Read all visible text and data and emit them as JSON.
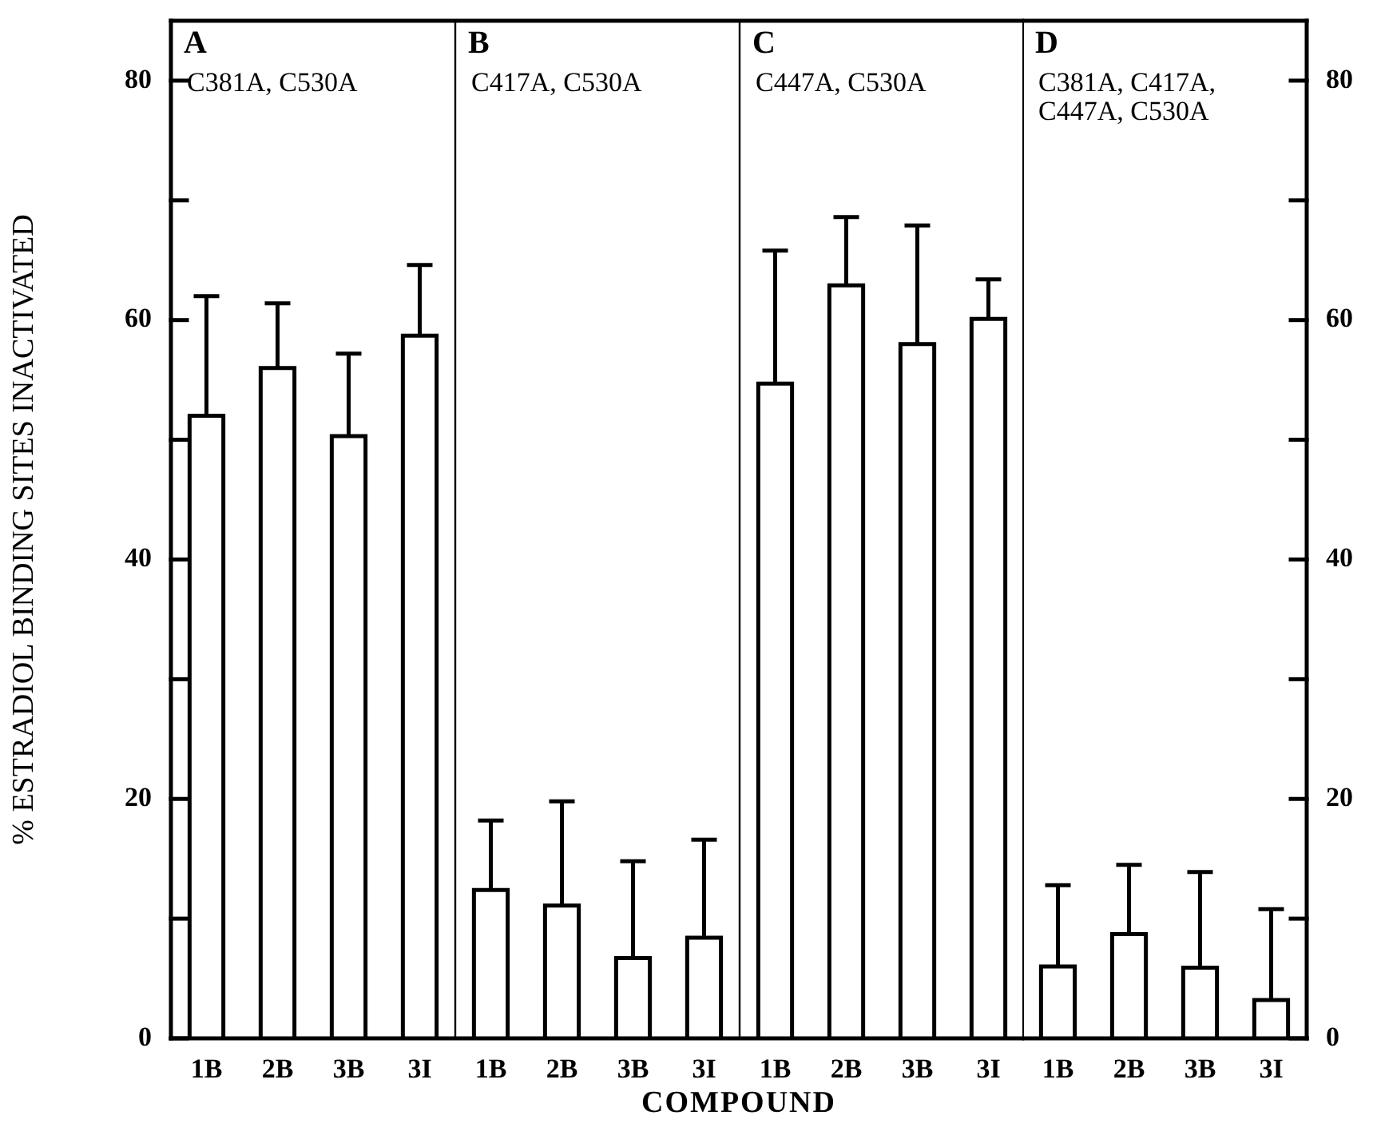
{
  "chart_data": [
    {
      "type": "bar",
      "title": "A",
      "subtitle": "C381A, C530A",
      "ylabel": "% ESTRADIOL BINDING SITES INACTIVATED",
      "categories": [
        "1B",
        "2B",
        "3B",
        "3I"
      ],
      "values": [
        52,
        56,
        50.3,
        58.7
      ],
      "errors": [
        [
          52,
          62
        ],
        [
          56,
          61.4
        ],
        [
          50.3,
          57.2
        ],
        [
          58.7,
          64.6
        ]
      ],
      "color": "#ffffff",
      "ylim": [
        0,
        85
      ],
      "yticks": [
        0,
        {
          "value": 10,
          "label": null
        },
        20,
        {
          "value": 30,
          "label": null
        },
        40,
        {
          "value": 50,
          "label": null
        },
        60,
        {
          "value": 70,
          "label": null
        },
        80
      ],
      "grid": false,
      "legend": false
    },
    {
      "type": "bar",
      "title": "B",
      "subtitle": "C417A, C530A",
      "categories": [
        "1B",
        "2B",
        "3B",
        "3I"
      ],
      "values": [
        12.4,
        11.1,
        6.7,
        8.4
      ],
      "errors": [
        [
          12.4,
          18.2
        ],
        [
          11.1,
          19.8
        ],
        [
          6.7,
          14.8
        ],
        [
          8.4,
          16.6
        ]
      ],
      "color": "#ffffff",
      "ylim": [
        0,
        85
      ],
      "tick_labels": "x",
      "grid": false,
      "legend": false
    },
    {
      "type": "bar",
      "title": "C",
      "subtitle": "C447A, C530A",
      "xlabel": "COMPOUND",
      "categories": [
        "1B",
        "2B",
        "3B",
        "3I"
      ],
      "values": [
        54.7,
        62.9,
        58,
        60.1
      ],
      "errors": [
        [
          54.7,
          65.8
        ],
        [
          62.9,
          68.6
        ],
        [
          58,
          67.9
        ],
        [
          60.1,
          63.4
        ]
      ],
      "color": "#ffffff",
      "ylim": [
        0,
        85
      ],
      "tick_labels": "x",
      "grid": false,
      "legend": false
    },
    {
      "type": "bar",
      "title": "D",
      "subtitle": "C381A, C417A, C447A, C530A",
      "categories": [
        "1B",
        "2B",
        "3B",
        "3I"
      ],
      "values": [
        6,
        8.7,
        5.9,
        3.2
      ],
      "errors": [
        [
          6,
          12.8
        ],
        [
          8.7,
          14.5
        ],
        [
          5.9,
          13.9
        ],
        [
          3.2,
          10.8
        ]
      ],
      "color": "#ffffff",
      "ylim": [
        0,
        85
      ],
      "yticks": [
        0,
        {
          "value": 10,
          "label": null
        },
        20,
        {
          "value": 30,
          "label": null
        },
        40,
        {
          "value": 50,
          "label": null
        },
        60,
        {
          "value": 70,
          "label": null
        },
        80
      ],
      "grid": false,
      "legend": false
    }
  ]
}
